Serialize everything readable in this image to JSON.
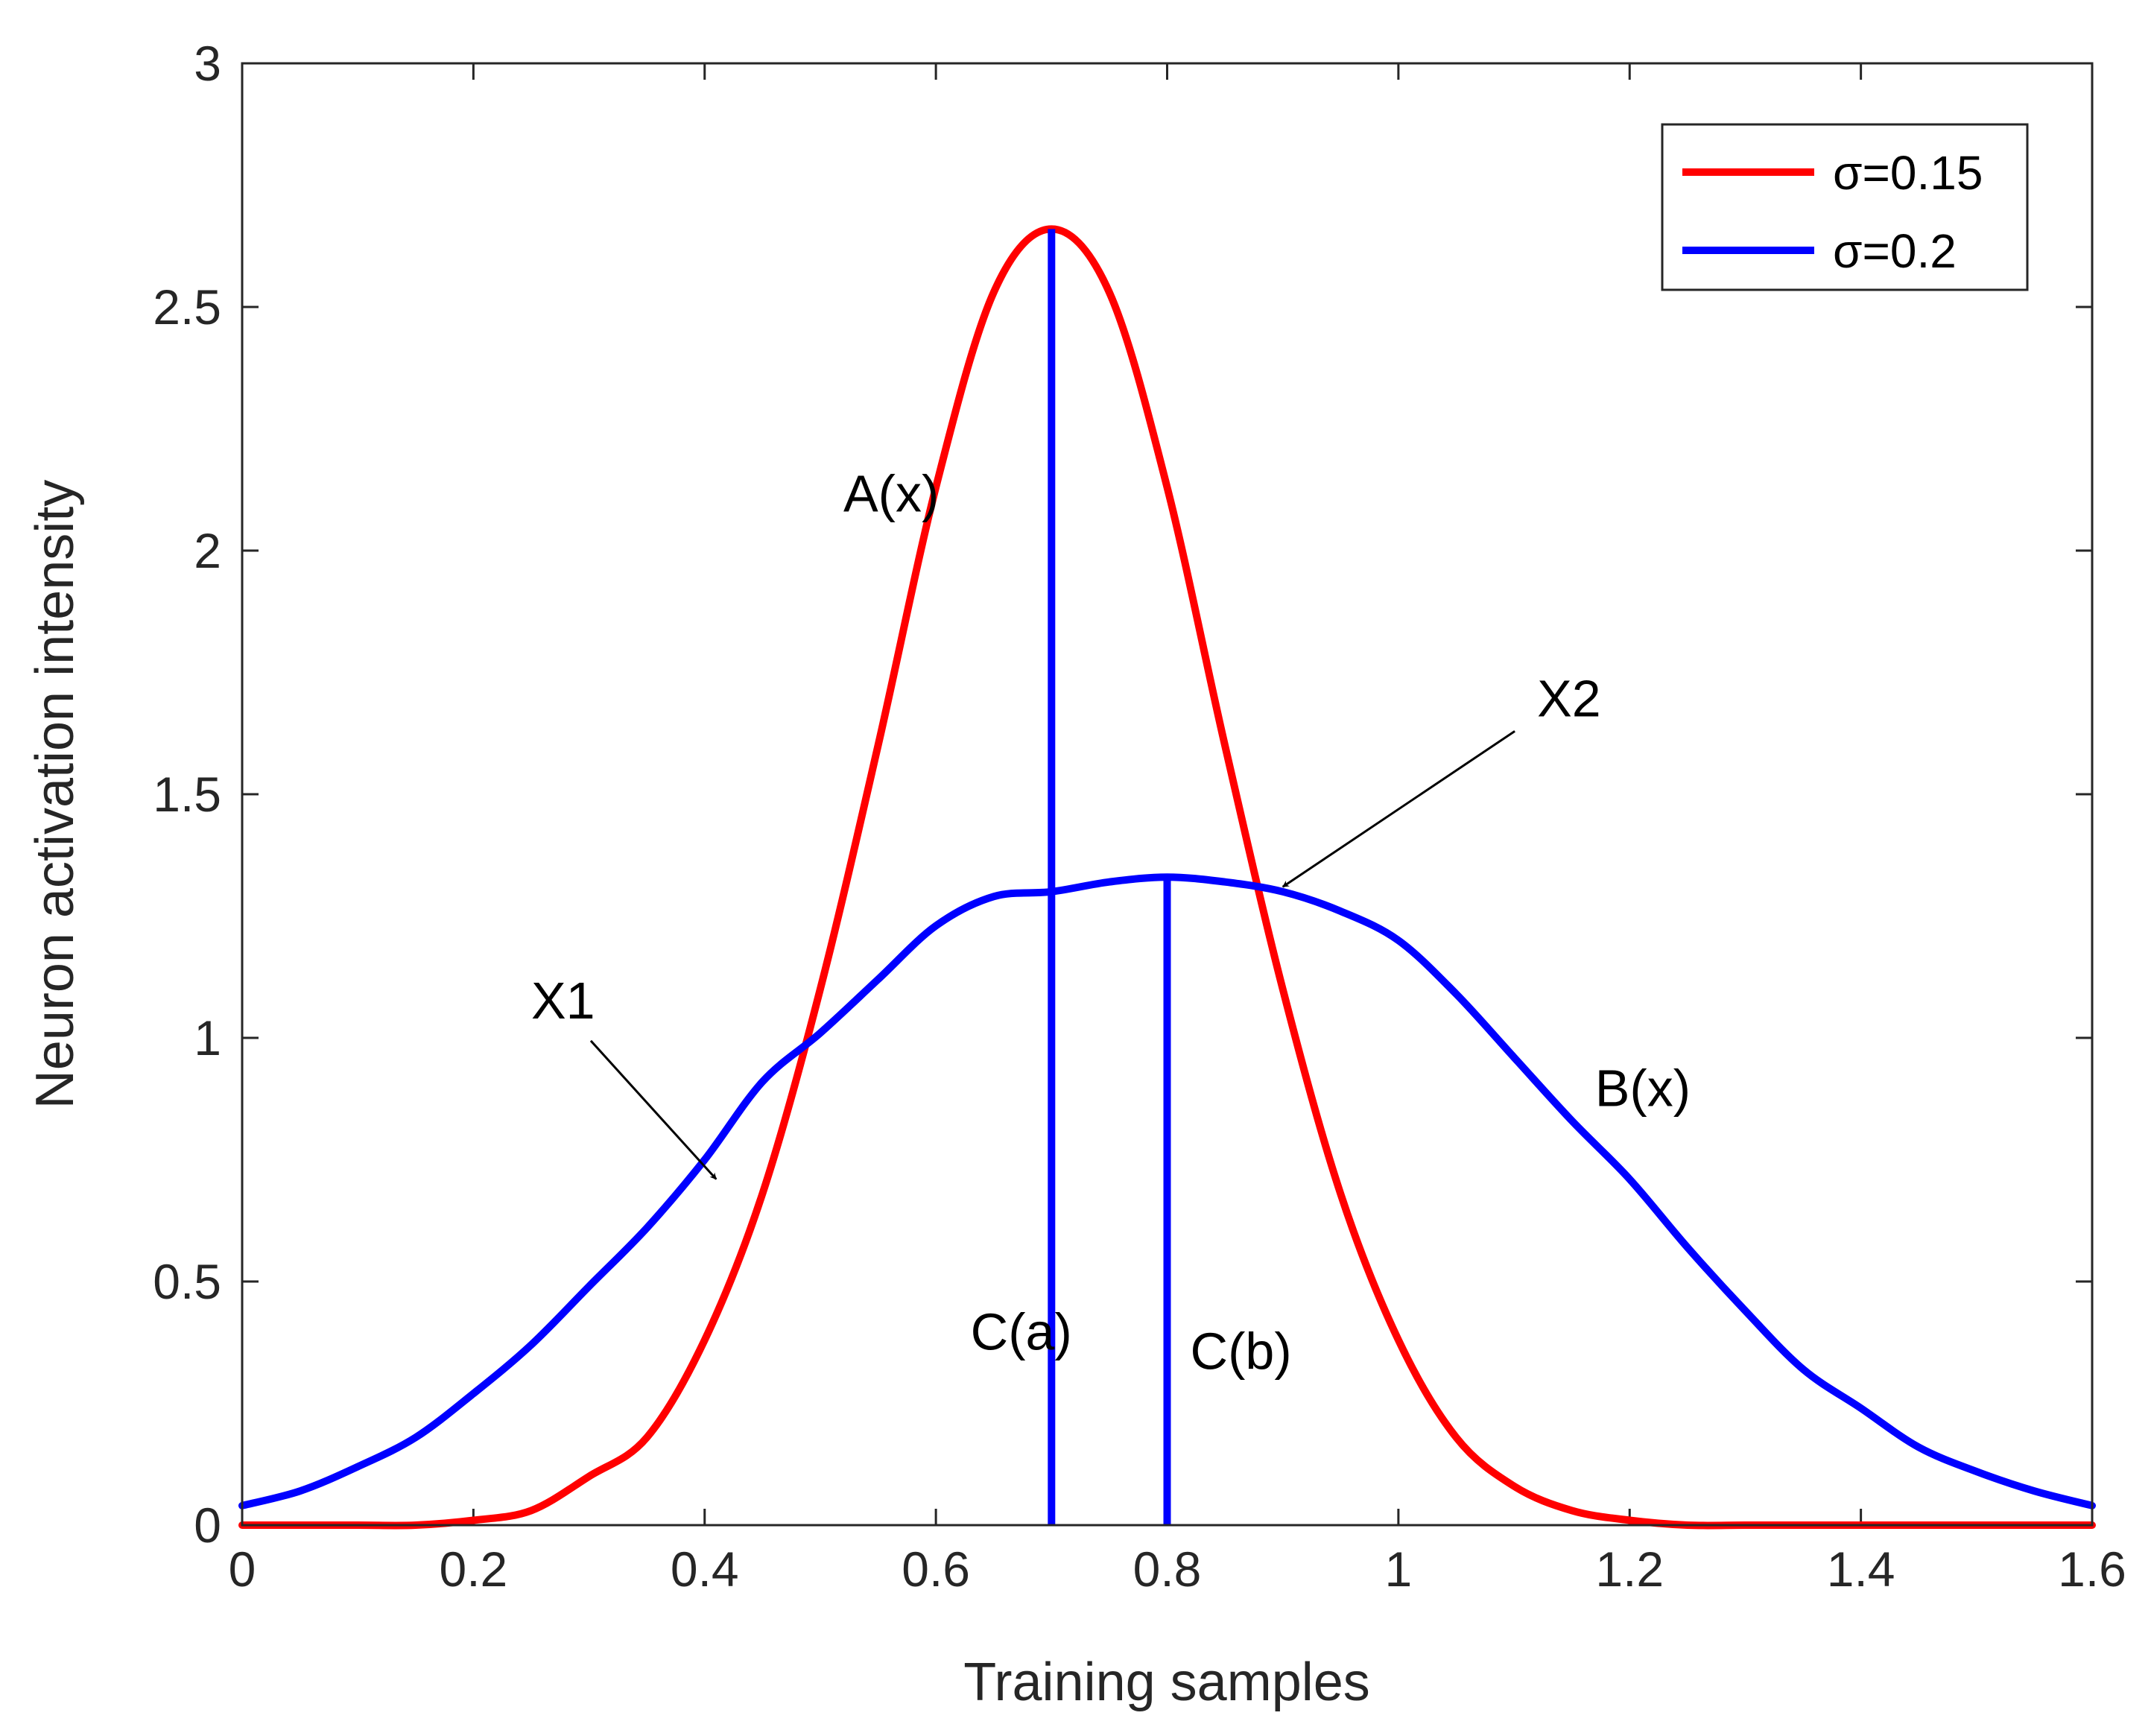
{
  "chart_data": {
    "type": "line",
    "title": "",
    "xlabel": "Training samples",
    "ylabel": "Neuron activation intensity",
    "xlim": [
      0,
      1.6
    ],
    "ylim": [
      0,
      3
    ],
    "xticks": [
      0,
      0.2,
      0.4,
      0.6,
      0.8,
      1.0,
      1.2,
      1.4,
      1.6
    ],
    "xtick_labels": [
      "0",
      "0.2",
      "0.4",
      "0.6",
      "0.8",
      "1",
      "1.2",
      "1.4",
      "1.6"
    ],
    "yticks": [
      0,
      0.5,
      1.0,
      1.5,
      2.0,
      2.5,
      3.0
    ],
    "ytick_labels": [
      "0",
      "0.5",
      "1",
      "1.5",
      "2",
      "2.5",
      "3"
    ],
    "grid": false,
    "legend_position": "top-right",
    "series": [
      {
        "name": "σ=0.15",
        "color": "#ff0000",
        "x": [
          0,
          0.05,
          0.1,
          0.15,
          0.2,
          0.25,
          0.3,
          0.35,
          0.4,
          0.45,
          0.5,
          0.55,
          0.6,
          0.65,
          0.7,
          0.75,
          0.8,
          0.85,
          0.9,
          0.95,
          1.0,
          1.05,
          1.1,
          1.15,
          1.2,
          1.25,
          1.3,
          1.35,
          1.4,
          1.45,
          1.5,
          1.55,
          1.6
        ],
        "values": [
          0.0,
          0.0,
          0.0,
          0.0,
          0.01,
          0.03,
          0.1,
          0.18,
          0.38,
          0.68,
          1.1,
          1.6,
          2.13,
          2.53,
          2.66,
          2.53,
          2.13,
          1.6,
          1.1,
          0.68,
          0.38,
          0.18,
          0.08,
          0.03,
          0.01,
          0.0,
          0.0,
          0.0,
          0.0,
          0.0,
          0.0,
          0.0,
          0.0
        ]
      },
      {
        "name": "σ=0.2",
        "color": "#0000ff",
        "x": [
          0,
          0.05,
          0.1,
          0.15,
          0.2,
          0.25,
          0.3,
          0.35,
          0.4,
          0.45,
          0.5,
          0.55,
          0.6,
          0.65,
          0.7,
          0.75,
          0.8,
          0.85,
          0.9,
          0.95,
          1.0,
          1.05,
          1.1,
          1.15,
          1.2,
          1.25,
          1.3,
          1.35,
          1.4,
          1.45,
          1.5,
          1.55,
          1.6
        ],
        "values": [
          0.04,
          0.07,
          0.12,
          0.18,
          0.27,
          0.37,
          0.49,
          0.61,
          0.75,
          0.91,
          1.01,
          1.12,
          1.23,
          1.29,
          1.3,
          1.32,
          1.33,
          1.32,
          1.3,
          1.26,
          1.2,
          1.09,
          0.96,
          0.83,
          0.71,
          0.57,
          0.44,
          0.32,
          0.24,
          0.16,
          0.11,
          0.07,
          0.04
        ]
      }
    ],
    "vertical_lines": [
      {
        "label": "C(a)",
        "x": 0.7,
        "y_top": 2.66,
        "color": "#0000ff"
      },
      {
        "label": "C(b)",
        "x": 0.8,
        "y_top": 1.33,
        "color": "#0000ff"
      }
    ],
    "annotations": [
      {
        "text": "A(x)",
        "x": 0.52,
        "y": 2.08
      },
      {
        "text": "B(x)",
        "x": 1.17,
        "y": 0.86
      },
      {
        "text": "C(a)",
        "x": 0.63,
        "y": 0.36
      },
      {
        "text": "C(b)",
        "x": 0.82,
        "y": 0.32
      },
      {
        "text": "X1",
        "x": 0.25,
        "y": 1.04,
        "arrow_to": [
          0.41,
          0.71
        ]
      },
      {
        "text": "X2",
        "x": 1.12,
        "y": 1.66,
        "arrow_to": [
          0.9,
          1.31
        ]
      }
    ]
  }
}
